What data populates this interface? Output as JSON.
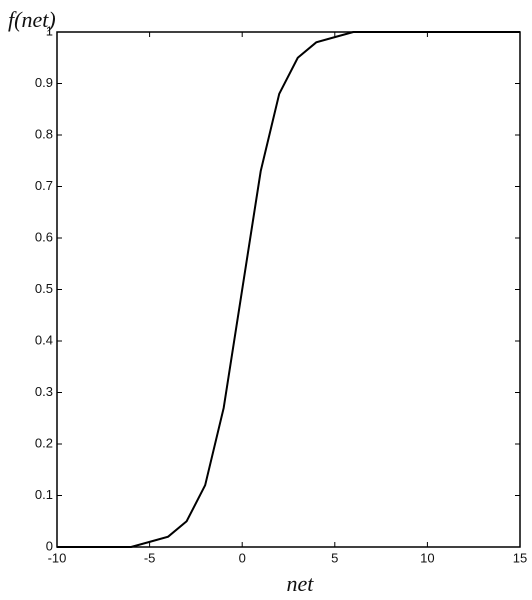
{
  "chart_data": {
    "type": "line",
    "ylabel": "f(net)",
    "xlabel": "net",
    "x": [
      -10,
      -9,
      -8,
      -7,
      -6,
      -5,
      -4,
      -3,
      -2,
      -1,
      0,
      1,
      2,
      3,
      4,
      5,
      6,
      7,
      8,
      9,
      10,
      11,
      12,
      13,
      14,
      15
    ],
    "series": [
      {
        "color": "#000000",
        "values": [
          0,
          0,
          0,
          0,
          0,
          0.01,
          0.02,
          0.05,
          0.12,
          0.27,
          0.5,
          0.73,
          0.88,
          0.95,
          0.98,
          0.99,
          1,
          1,
          1,
          1,
          1,
          1,
          1,
          1,
          1,
          1
        ]
      }
    ],
    "xlim": [
      -10,
      15
    ],
    "xticks": [
      -10,
      -5,
      0,
      5,
      10,
      15
    ],
    "ylim": [
      0,
      1
    ],
    "yticks": [
      0,
      0.1,
      0.2,
      0.3,
      0.4,
      0.5,
      0.6,
      0.7,
      0.8,
      0.9,
      1
    ],
    "grid": false
  }
}
